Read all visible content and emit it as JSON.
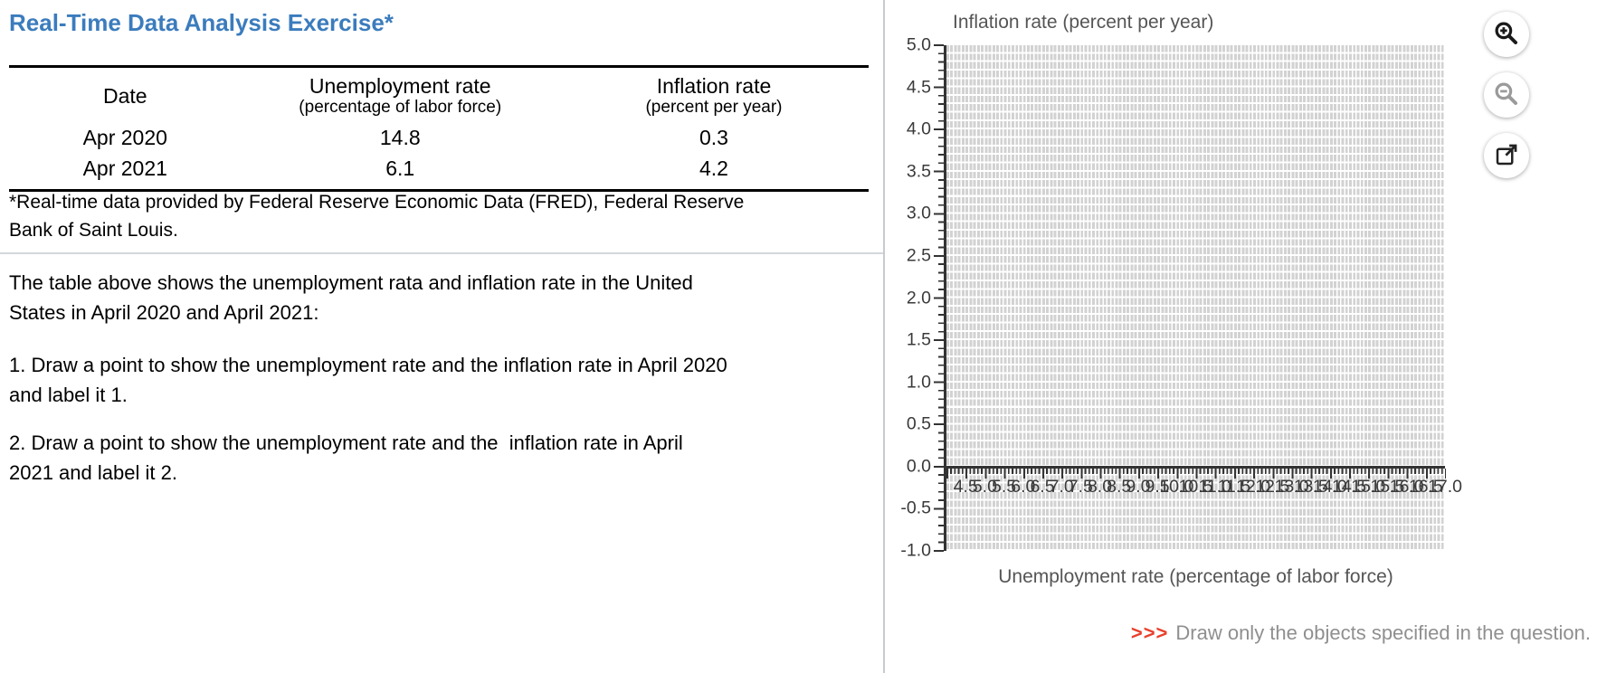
{
  "left": {
    "title": "Real-Time Data Analysis Exercise*",
    "table": {
      "headers": {
        "date": "Date",
        "unemployment": "Unemployment rate",
        "unemployment_sub": "(percentage of labor force)",
        "inflation": "Inflation rate",
        "inflation_sub": "(percent per year)"
      },
      "rows": [
        {
          "date": "Apr 2020",
          "unemployment": "14.8",
          "inflation": "0.3"
        },
        {
          "date": "Apr 2021",
          "unemployment": "6.1",
          "inflation": "4.2"
        }
      ]
    },
    "footnote": {
      "line1": "*Real-time data provided by Federal Reserve Economic Data (FRED), Federal Reserve",
      "line2": "Bank of Saint Louis."
    },
    "paragraph": {
      "line1": "The table above shows the unemployment rata and inflation rate in the United",
      "line2": "States in April 2020 and April 2021:"
    },
    "item1": {
      "line1": "1. Draw a point to show the unemployment rate and the inflation rate in April 2020",
      "line2": "and label it 1."
    },
    "item2": {
      "line1": "2. Draw a point to show the unemployment rate and the  inflation rate in April",
      "line2": "2021 and label it 2."
    }
  },
  "chart_data": {
    "type": "scatter",
    "title": "Inflation rate (percent per year)",
    "xlabel": "Unemployment rate (percentage of labor force)",
    "ylabel": "Inflation rate (percent per year)",
    "xlim": [
      4.0,
      17.0
    ],
    "ylim": [
      -1.0,
      5.0
    ],
    "grid": true,
    "points": [],
    "x_tick_labels": [
      "4.5",
      "5.0",
      "5.5",
      "6.0",
      "6.5",
      "7.0",
      "7.5",
      "8.0",
      "8.5",
      "9.0",
      "9.5",
      "10.0",
      "10.5",
      "11.0",
      "11.5",
      "12.0",
      "12.5",
      "13.0",
      "13.5",
      "14.0",
      "14.5",
      "15.0",
      "15.5",
      "16.0",
      "16.5",
      "17.0"
    ],
    "y_tick_labels": [
      "5.0",
      "4.5",
      "4.0",
      "3.5",
      "3.0",
      "2.5",
      "2.0",
      "1.5",
      "1.0",
      "0.5",
      "0.0",
      "-0.5",
      "-1.0"
    ]
  },
  "toolbar": {
    "zoom_in": "zoom-in",
    "zoom_out": "zoom-out",
    "open_external": "open-in-new-window"
  },
  "hint": {
    "arrows": ">>>",
    "text": "Draw only the objects specified in the question."
  },
  "colors": {
    "title_blue": "#3b7cbd",
    "hint_red": "#e8402c",
    "hint_gray": "#8f8f8f",
    "grid_gray": "#d2d2d2",
    "axis_dark": "#333333"
  }
}
